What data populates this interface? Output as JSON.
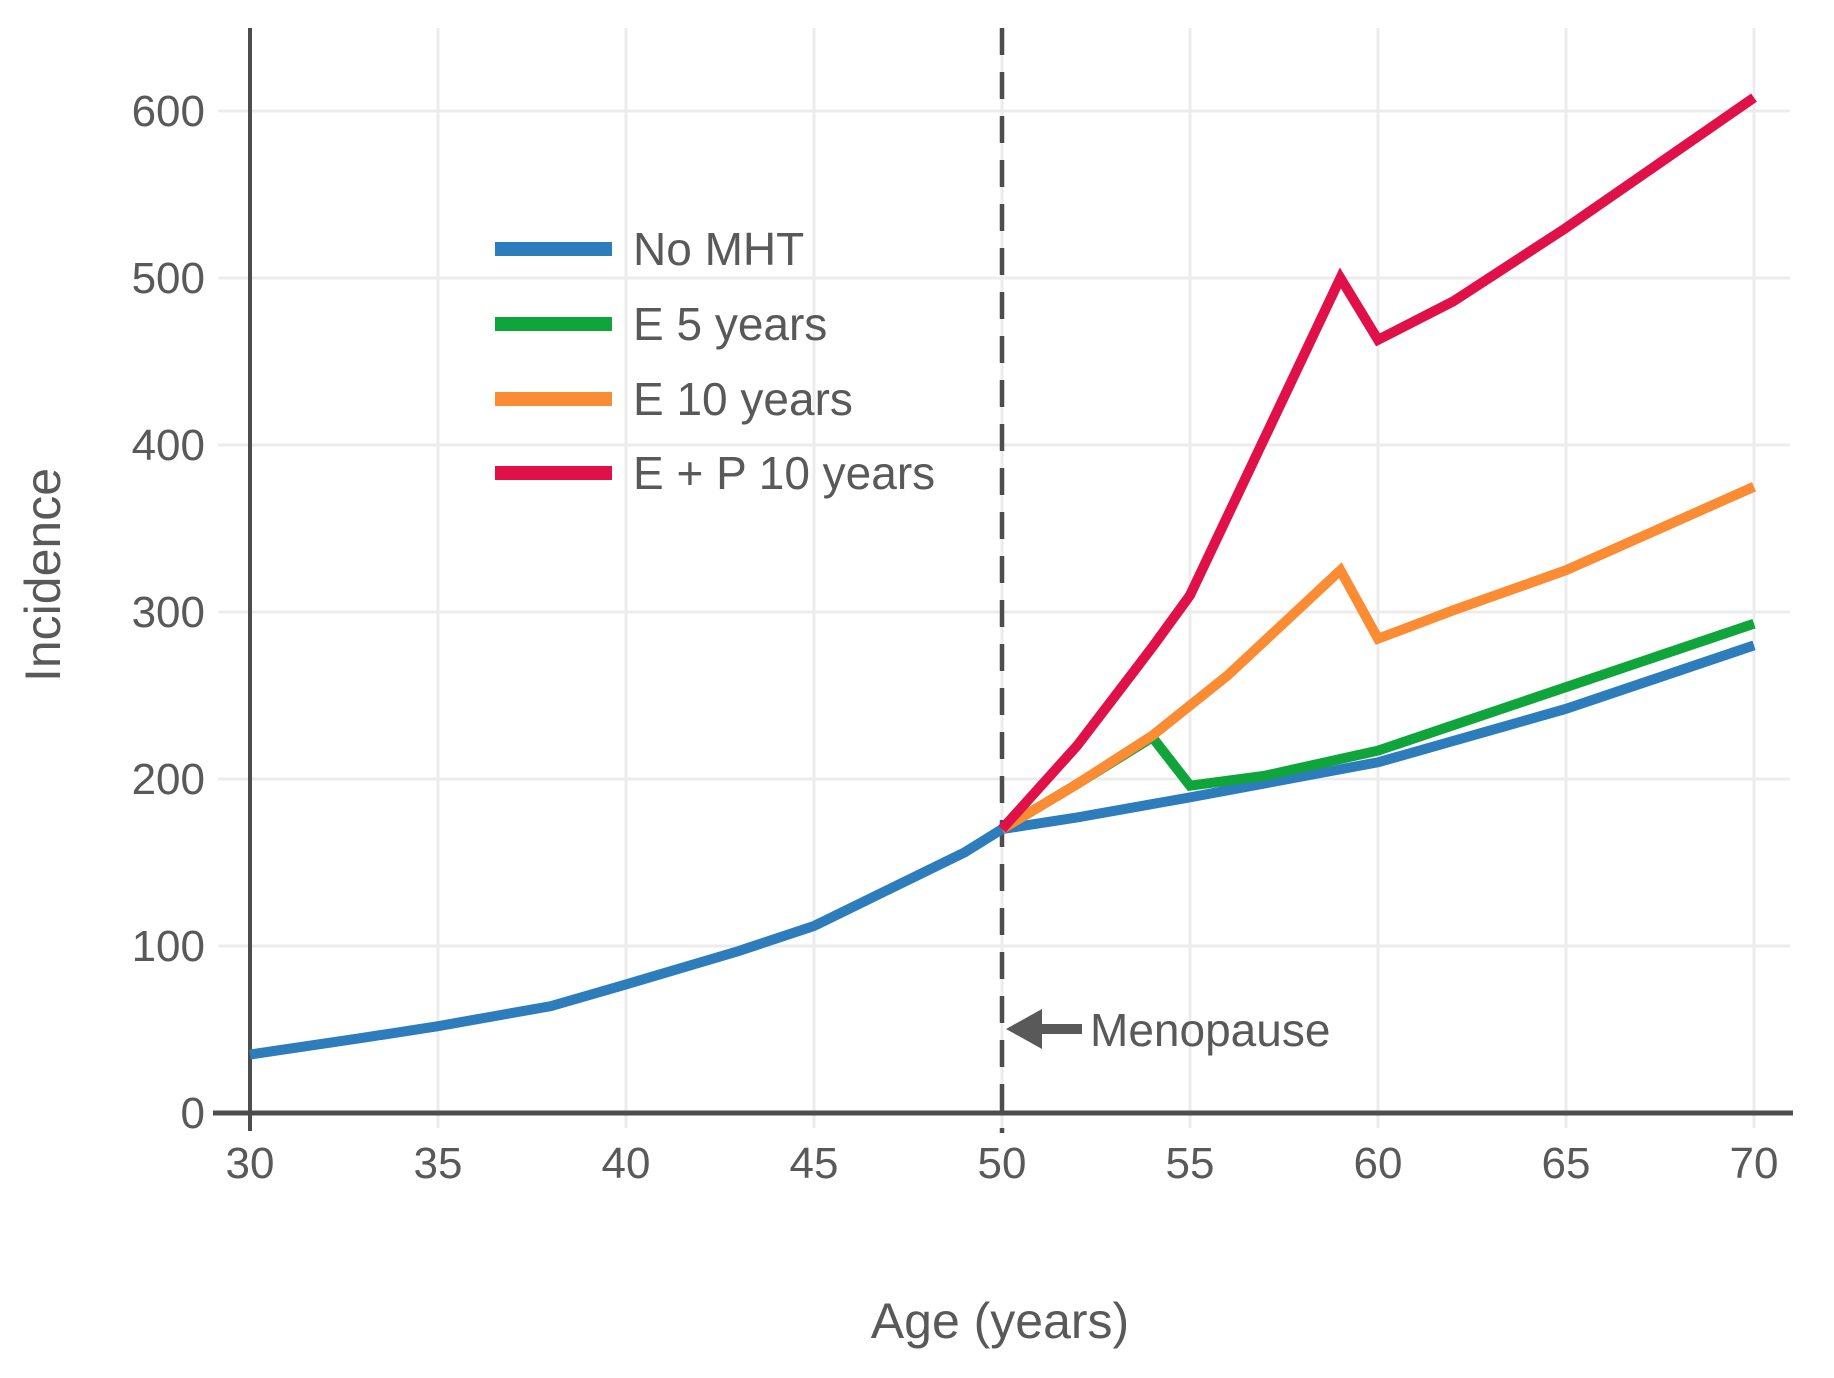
{
  "colors": {
    "background": "#ffffff",
    "axis": "#4d4d4d",
    "grid": "#ececec",
    "text": "#595959",
    "annotation": "#595959"
  },
  "annotation": {
    "menopause_label": "Menopause",
    "arrow_icon": "left-arrow-icon"
  },
  "chart_data": {
    "type": "line",
    "title": "",
    "xlabel": "Age (years)",
    "ylabel": "Incidence",
    "xlim": [
      30,
      70
    ],
    "ylim": [
      0,
      650
    ],
    "xticks": [
      30,
      35,
      40,
      45,
      50,
      55,
      60,
      65,
      70
    ],
    "yticks": [
      0,
      100,
      200,
      300,
      400,
      500,
      600
    ],
    "grid": true,
    "legend_position": "upper-left-inside",
    "menopause_line_x": 50,
    "series": [
      {
        "name": "No MHT",
        "color": "#2d7cbb",
        "points": [
          [
            30,
            35
          ],
          [
            33,
            45
          ],
          [
            35,
            52
          ],
          [
            38,
            64
          ],
          [
            40,
            77
          ],
          [
            43,
            97
          ],
          [
            45,
            112
          ],
          [
            47,
            134
          ],
          [
            49,
            156
          ],
          [
            50,
            170
          ],
          [
            52,
            177
          ],
          [
            55,
            189
          ],
          [
            60,
            210
          ],
          [
            65,
            242
          ],
          [
            70,
            280
          ]
        ]
      },
      {
        "name": "E 5 years",
        "color": "#10a53a",
        "points": [
          [
            50,
            170
          ],
          [
            52,
            197
          ],
          [
            54,
            225
          ],
          [
            55,
            196
          ],
          [
            57,
            202
          ],
          [
            60,
            217
          ],
          [
            65,
            255
          ],
          [
            70,
            293
          ]
        ]
      },
      {
        "name": "E 10 years",
        "color": "#fb8c34",
        "points": [
          [
            50,
            170
          ],
          [
            52,
            197
          ],
          [
            54,
            226
          ],
          [
            56,
            262
          ],
          [
            59,
            325
          ],
          [
            60,
            284
          ],
          [
            62,
            301
          ],
          [
            65,
            325
          ],
          [
            70,
            375
          ]
        ]
      },
      {
        "name": "E + P 10 years",
        "color": "#e01148",
        "points": [
          [
            50,
            170
          ],
          [
            52,
            220
          ],
          [
            54,
            279
          ],
          [
            55,
            310
          ],
          [
            57,
            405
          ],
          [
            59,
            500
          ],
          [
            60,
            463
          ],
          [
            62,
            486
          ],
          [
            65,
            530
          ],
          [
            70,
            608
          ]
        ]
      }
    ]
  }
}
